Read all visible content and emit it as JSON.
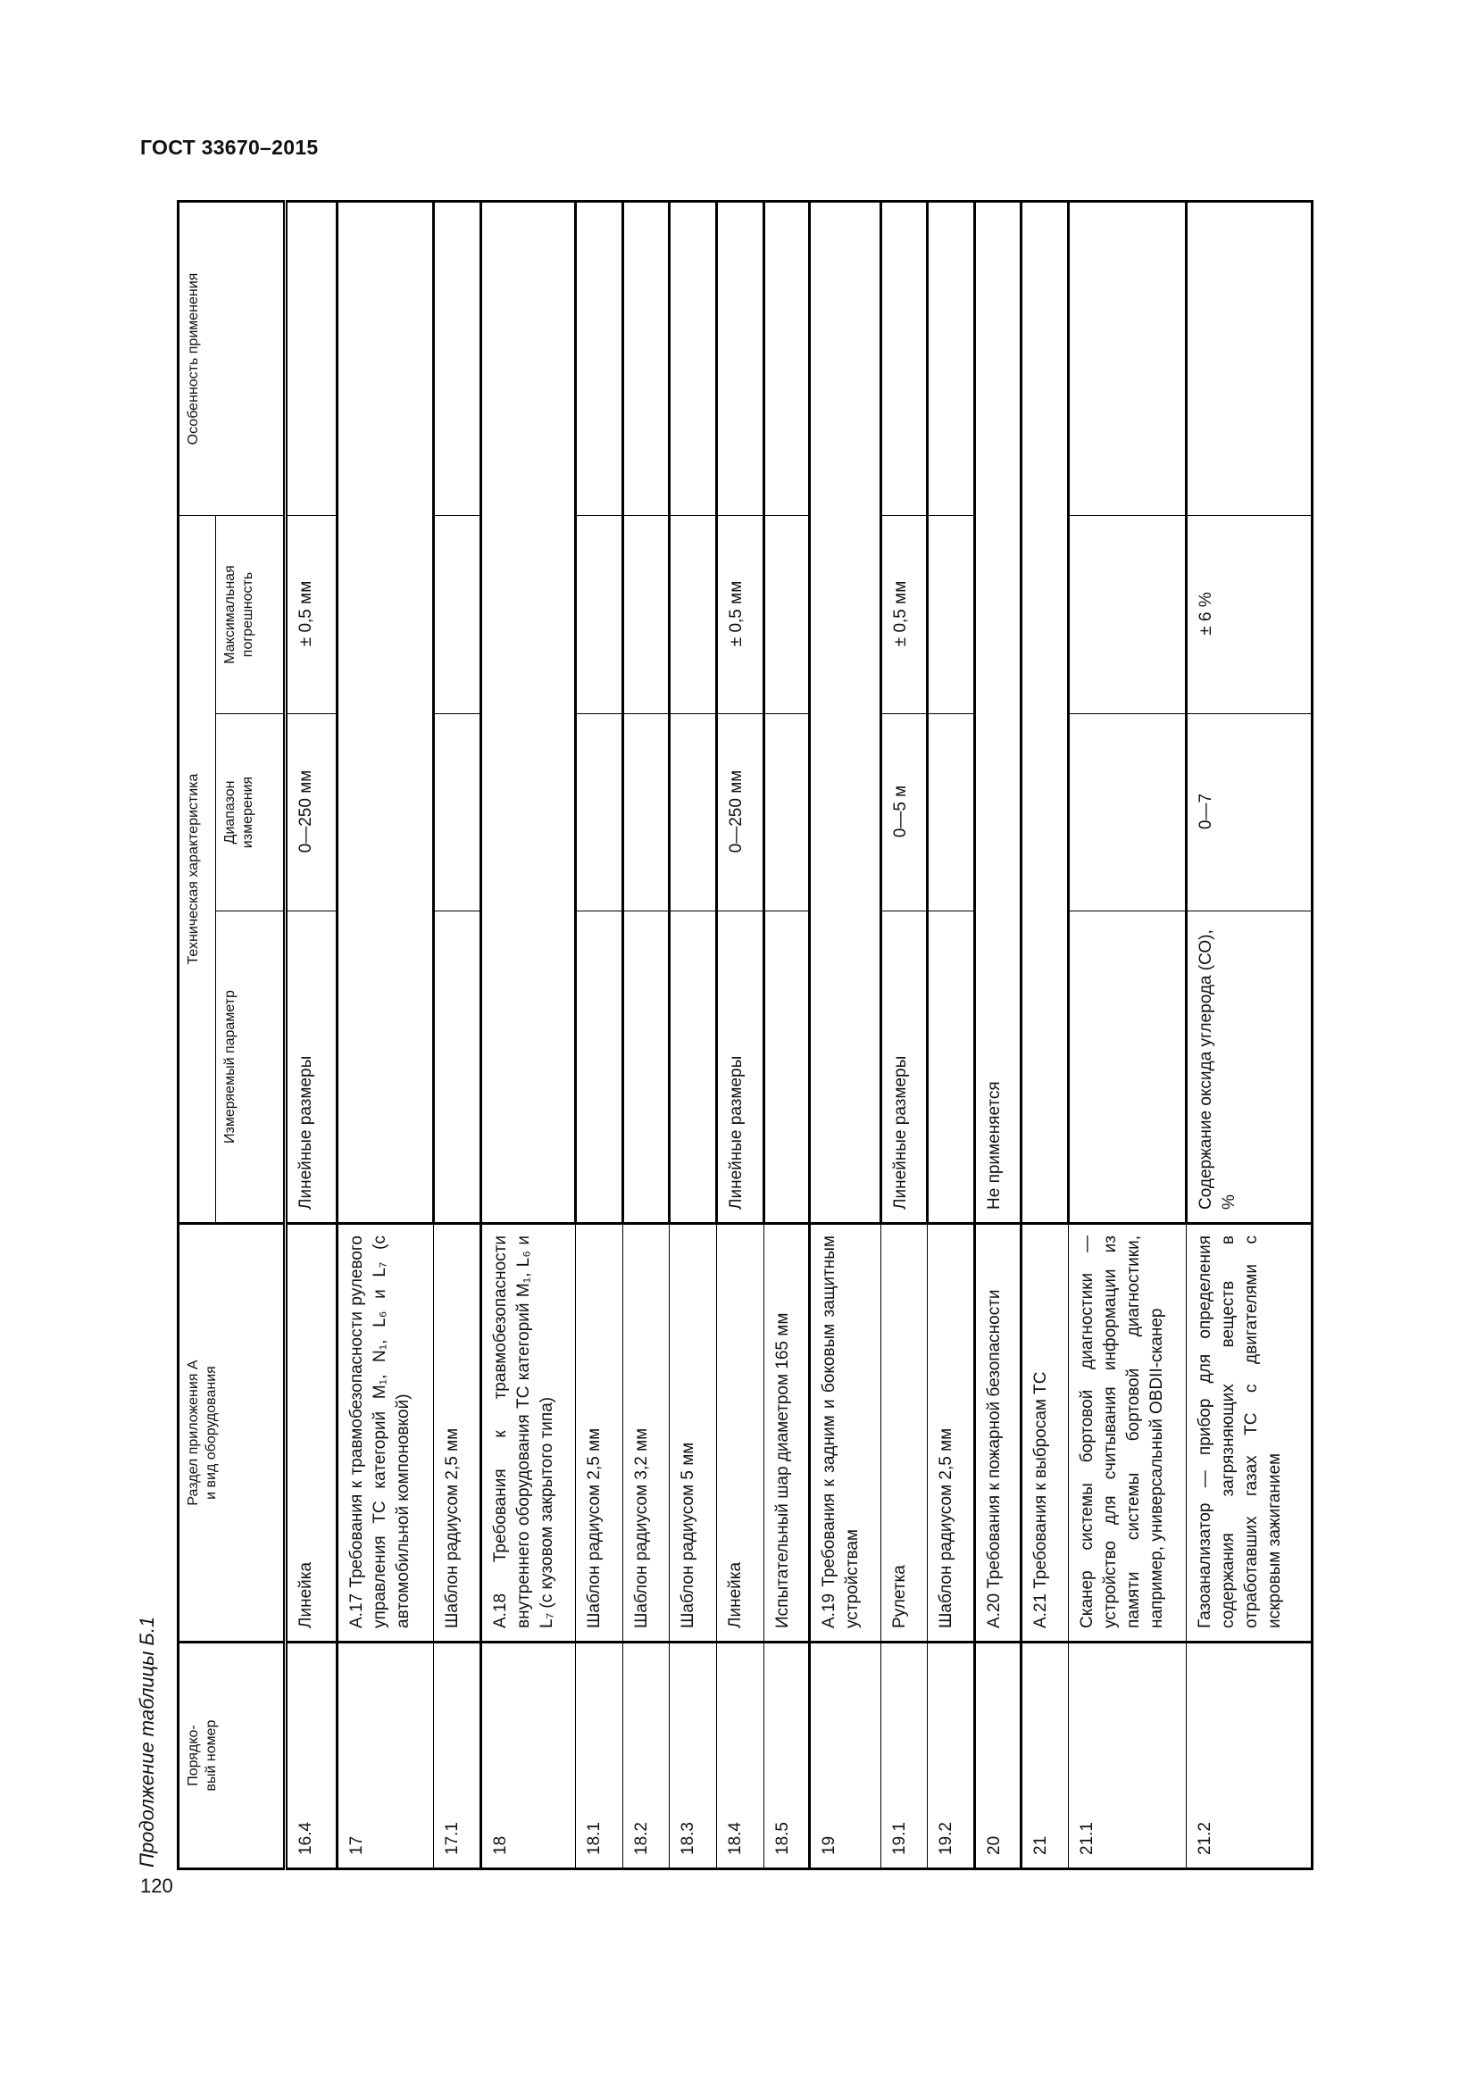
{
  "header": {
    "doc_title": "ГОСТ 33670–2015",
    "caption": "Продолжение таблицы Б.1",
    "page_number": "120"
  },
  "table": {
    "columns": {
      "num": "Порядко-\nвый номер",
      "name": "Раздел приложения А\nи вид оборудования",
      "tech": "Техническая характеристика",
      "param": "Измеряемый параметр",
      "range": "Диапазон\nизмерения",
      "error": "Максимальная\nпогрешность",
      "note": "Особенность применения"
    },
    "rows": [
      {
        "num": "16.4",
        "name": "Линейка",
        "param": "Линейные размеры",
        "range": "0—250 мм",
        "error": "± 0,5 мм",
        "note": "",
        "group": true
      },
      {
        "num": "17",
        "name": "А.17 Требования к травмобезопасности рулевого управления ТС категорий M₁, N₁, L₆ и L₇ (с автомобильной компоновкой)",
        "merged": true,
        "group": true
      },
      {
        "num": "17.1",
        "name": "Шаблон радиусом 2,5 мм",
        "param": "",
        "range": "",
        "error": "",
        "note": ""
      },
      {
        "num": "18",
        "name": "А.18 Требования к травмобезопасности внутреннего оборудования ТС категорий M₁, L₆ и L₇ (с кузовом закрытого типа)",
        "merged": true,
        "group": true
      },
      {
        "num": "18.1",
        "name": "Шаблон радиусом 2,5 мм",
        "param": "",
        "range": "",
        "error": "",
        "note": ""
      },
      {
        "num": "18.2",
        "name": "Шаблон радиусом 3,2 мм",
        "param": "",
        "range": "",
        "error": "",
        "note": ""
      },
      {
        "num": "18.3",
        "name": "Шаблон радиусом 5 мм",
        "param": "",
        "range": "",
        "error": "",
        "note": ""
      },
      {
        "num": "18.4",
        "name": "Линейка",
        "param": "Линейные размеры",
        "range": "0—250 мм",
        "error": "± 0,5 мм",
        "note": ""
      },
      {
        "num": "18.5",
        "name": "Испытательный шар диаметром 165 мм",
        "param": "",
        "range": "",
        "error": "",
        "note": ""
      },
      {
        "num": "19",
        "name": "А.19 Требования к задним и боковым защитным устройствам",
        "merged": true,
        "group": true
      },
      {
        "num": "19.1",
        "name": "Рулетка",
        "param": "Линейные размеры",
        "range": "0—5 м",
        "error": "± 0,5 мм",
        "note": ""
      },
      {
        "num": "19.2",
        "name": "Шаблон радиусом 2,5 мм",
        "param": "",
        "range": "",
        "error": "",
        "note": ""
      },
      {
        "num": "20",
        "name": "А.20 Требования к пожарной безопасности",
        "merged": true,
        "merged_text": "Не применяется",
        "group": true
      },
      {
        "num": "21",
        "name": "А.21 Требования к выбросам ТС",
        "merged": true,
        "group": true
      },
      {
        "num": "21.1",
        "name": "Сканер системы бортовой диагностики — устройство для считывания информации из памяти системы бортовой диагностики, например, универсальный OBDII-сканер",
        "param": "",
        "range": "",
        "error": "",
        "note": ""
      },
      {
        "num": "21.2",
        "name": "Газоанализатор — прибор для определения содержания загрязняющих веществ в отработавших газах ТС с двигателями с искровым зажиганием",
        "param": "Содержание оксида углерода (СО), %",
        "range": "0—7",
        "error": "± 6 %",
        "note": ""
      }
    ]
  }
}
